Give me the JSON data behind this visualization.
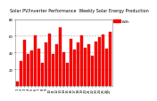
{
  "title": "Solar PV/Inverter Performance  Weekly Solar Energy Production",
  "bar_color": "#FF0000",
  "background_color": "#FFFFFF",
  "plot_bg_color": "#FFFFFF",
  "text_color": "#000000",
  "grid_color": "#AAAAAA",
  "categories": [
    "1",
    "2",
    "3",
    "4",
    "5",
    "6",
    "7",
    "8",
    "9",
    "10",
    "11",
    "12",
    "13",
    "14",
    "15",
    "16",
    "17",
    "18",
    "19",
    "20",
    "21",
    "22",
    "23",
    "24",
    "25",
    "26",
    "27"
  ],
  "values": [
    5,
    30,
    55,
    38,
    42,
    60,
    45,
    28,
    52,
    63,
    38,
    50,
    70,
    40,
    28,
    56,
    43,
    52,
    60,
    46,
    50,
    36,
    53,
    58,
    62,
    45,
    65
  ],
  "ylim": [
    0,
    80
  ],
  "yticks": [
    20,
    40,
    60,
    80
  ],
  "ytick_labels": [
    "20",
    "40",
    "60",
    "80"
  ],
  "legend_entries": [
    "kWh"
  ],
  "legend_colors": [
    "#FF0000"
  ],
  "title_fontsize": 3.5,
  "tick_fontsize": 2.8,
  "ylabel_fontsize": 3.0
}
